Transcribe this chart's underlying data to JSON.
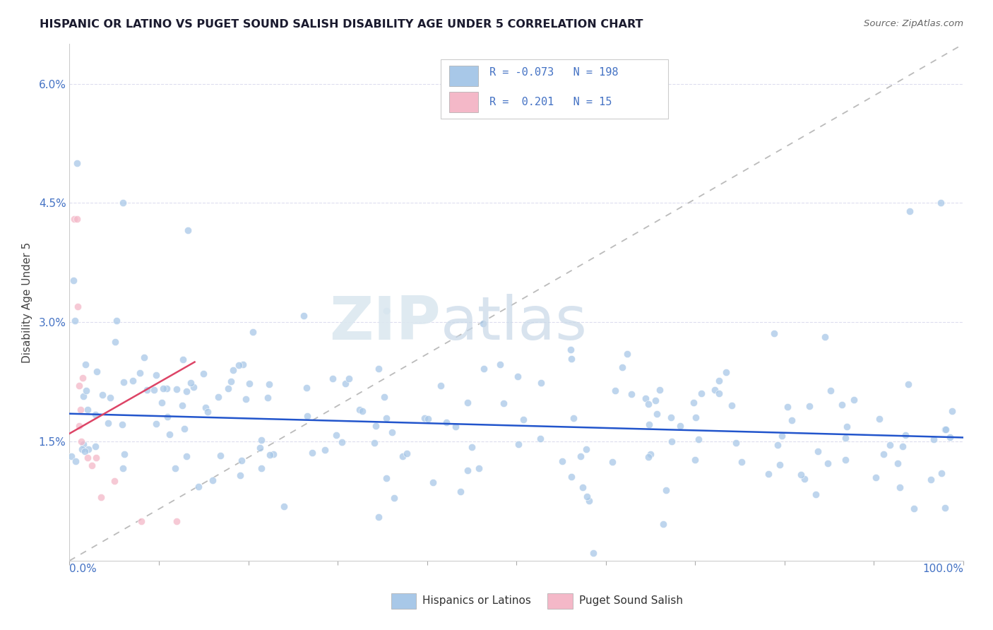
{
  "title": "HISPANIC OR LATINO VS PUGET SOUND SALISH DISABILITY AGE UNDER 5 CORRELATION CHART",
  "source": "Source: ZipAtlas.com",
  "ylabel": "Disability Age Under 5",
  "xlim": [
    0.0,
    1.0
  ],
  "ylim": [
    0.0,
    0.065
  ],
  "r_blue": -0.073,
  "n_blue": 198,
  "r_pink": 0.201,
  "n_pink": 15,
  "blue_color": "#a8c8e8",
  "pink_color": "#f4b8c8",
  "blue_line_color": "#2255cc",
  "pink_line_color": "#dd4466",
  "ref_line_color": "#cccccc",
  "grid_color": "#ddddee",
  "spine_color": "#cccccc",
  "text_color": "#4472c4",
  "title_color": "#1a1a2e",
  "legend_blue_label": "Hispanics or Latinos",
  "legend_pink_label": "Puget Sound Salish",
  "watermark_zip": "ZIP",
  "watermark_atlas": "atlas"
}
